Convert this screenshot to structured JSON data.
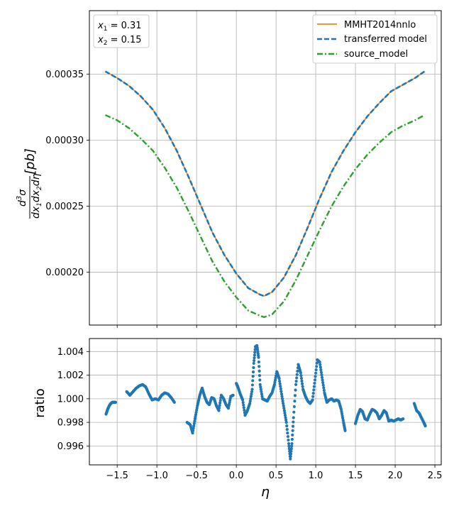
{
  "chart_data": [
    {
      "type": "line",
      "ylabel": "d³σ/dx₁dx₂dη [pb]",
      "ylabel_parts": {
        "numer": "d",
        "numer_sup": "3",
        "numer_sigma": "σ",
        "denom": "dx",
        "denom_sub1": "1",
        "denom_mid": "dx",
        "denom_sub2": "2",
        "denom_end": "dη",
        "unit": "[pb]"
      },
      "xlim": [
        -1.85,
        2.58
      ],
      "ylim": [
        0.00016,
        0.000398
      ],
      "grid": true,
      "legend_position": "top-right",
      "annotation": {
        "x1_var": "x",
        "x1_sub": "1",
        "x1_text": " = 0.31",
        "x2_var": "x",
        "x2_sub": "2",
        "x2_text": " = 0.15"
      },
      "ytick_values": [
        0.0002,
        0.00025,
        0.0003,
        0.00035
      ],
      "ytick_labels": [
        "0.00020",
        "0.00025",
        "0.00030",
        "0.00035"
      ],
      "series": [
        {
          "name": "MMHT2014nnlo",
          "color": "#ff7f0e",
          "style": "solid",
          "x": [
            -1.65,
            -1.5,
            -1.35,
            -1.2,
            -1.05,
            -0.9,
            -0.75,
            -0.6,
            -0.45,
            -0.3,
            -0.15,
            0.0,
            0.15,
            0.3,
            0.35,
            0.45,
            0.6,
            0.75,
            0.9,
            1.05,
            1.2,
            1.35,
            1.5,
            1.65,
            1.8,
            1.95,
            2.1,
            2.25,
            2.37
          ],
          "y": [
            0.000352,
            0.000347,
            0.000341,
            0.000333,
            0.000323,
            0.000309,
            0.000292,
            0.000272,
            0.000251,
            0.00023,
            0.000213,
            0.000199,
            0.000188,
            0.000183,
            0.000182,
            0.000185,
            0.000196,
            0.000213,
            0.000234,
            0.000256,
            0.000276,
            0.000292,
            0.000306,
            0.000318,
            0.000328,
            0.000337,
            0.000342,
            0.000347,
            0.000352
          ]
        },
        {
          "name": "transferred model",
          "color": "#1f77b4",
          "style": "dashed",
          "x": [
            -1.65,
            -1.5,
            -1.35,
            -1.2,
            -1.05,
            -0.9,
            -0.75,
            -0.6,
            -0.45,
            -0.3,
            -0.15,
            0.0,
            0.15,
            0.3,
            0.35,
            0.45,
            0.6,
            0.75,
            0.9,
            1.05,
            1.2,
            1.35,
            1.5,
            1.65,
            1.8,
            1.95,
            2.1,
            2.25,
            2.37
          ],
          "y": [
            0.000352,
            0.000347,
            0.000341,
            0.000333,
            0.000323,
            0.000309,
            0.000292,
            0.000272,
            0.000251,
            0.00023,
            0.000213,
            0.000199,
            0.000188,
            0.000183,
            0.000182,
            0.000185,
            0.000196,
            0.000213,
            0.000234,
            0.000256,
            0.000276,
            0.000292,
            0.000306,
            0.000318,
            0.000328,
            0.000337,
            0.000342,
            0.000347,
            0.000352
          ]
        },
        {
          "name": "source_model",
          "color": "#2ca02c",
          "style": "dashdot",
          "x": [
            -1.65,
            -1.5,
            -1.35,
            -1.2,
            -1.05,
            -0.9,
            -0.75,
            -0.6,
            -0.45,
            -0.3,
            -0.15,
            0.0,
            0.15,
            0.3,
            0.35,
            0.45,
            0.6,
            0.75,
            0.9,
            1.05,
            1.2,
            1.35,
            1.5,
            1.65,
            1.8,
            1.95,
            2.1,
            2.25,
            2.37
          ],
          "y": [
            0.000319,
            0.000315,
            0.000309,
            0.000301,
            0.000292,
            0.000279,
            0.000264,
            0.000246,
            0.000227,
            0.000208,
            0.000193,
            0.000181,
            0.000171,
            0.000167,
            0.000166,
            0.000168,
            0.000178,
            0.000194,
            0.000213,
            0.000232,
            0.00025,
            0.000265,
            0.000278,
            0.000289,
            0.000298,
            0.000306,
            0.000311,
            0.000315,
            0.000319
          ]
        }
      ]
    },
    {
      "type": "scatter",
      "xlabel": "η",
      "ylabel": "ratio",
      "xlim": [
        -1.85,
        2.58
      ],
      "ylim": [
        0.9944,
        1.0051
      ],
      "grid": true,
      "xtick_values": [
        -1.5,
        -1.0,
        -0.5,
        0.0,
        0.5,
        1.0,
        1.5,
        2.0,
        2.5
      ],
      "xtick_labels": [
        "−1.5",
        "−1.0",
        "−0.5",
        "0.0",
        "0.5",
        "1.0",
        "1.5",
        "2.0",
        "2.5"
      ],
      "ytick_values": [
        0.996,
        0.998,
        1.0,
        1.002,
        1.004
      ],
      "ytick_labels": [
        "0.996",
        "0.998",
        "1.000",
        "1.002",
        "1.004"
      ],
      "series": [
        {
          "color": "#1f77b4",
          "segments": [
            {
              "x": [
                -1.64,
                -1.62,
                -1.6,
                -1.58,
                -1.56,
                -1.54,
                -1.52
              ],
              "y": [
                0.9987,
                0.9991,
                0.9994,
                0.9996,
                0.9997,
                0.9997,
                0.9997
              ]
            },
            {
              "x": [
                -1.38,
                -1.34,
                -1.3,
                -1.26,
                -1.22,
                -1.18,
                -1.14,
                -1.1,
                -1.06,
                -1.02,
                -0.98,
                -0.94,
                -0.9,
                -0.86,
                -0.82,
                -0.78
              ],
              "y": [
                1.0006,
                1.0003,
                1.0006,
                1.0009,
                1.0011,
                1.0012,
                1.001,
                1.0004,
                0.9999,
                1.0,
                0.9999,
                1.0003,
                1.0005,
                1.0004,
                1.0001,
                0.9997
              ]
            },
            {
              "x": [
                -0.62,
                -0.58,
                -0.55,
                -0.52,
                -0.49,
                -0.46,
                -0.43,
                -0.4,
                -0.37,
                -0.34,
                -0.31,
                -0.28,
                -0.25,
                -0.22,
                -0.19,
                -0.16,
                -0.13,
                -0.1,
                -0.07,
                -0.04
              ],
              "y": [
                0.998,
                0.9978,
                0.9971,
                0.9983,
                0.9994,
                1.0003,
                1.0009,
                1.0002,
                0.9997,
                0.9995,
                1.0001,
                1.0,
                0.9994,
                0.999,
                1.0003,
                1.0,
                0.9995,
                0.9992,
                1.0002,
                1.0003
              ]
            },
            {
              "x": [
                0.0,
                0.02,
                0.05,
                0.08,
                0.11,
                0.14,
                0.17,
                0.2,
                0.22,
                0.24,
                0.26,
                0.28,
                0.3,
                0.33,
                0.36,
                0.39,
                0.42,
                0.45,
                0.48,
                0.51,
                0.54,
                0.57,
                0.6,
                0.63,
                0.66,
                0.68,
                0.7,
                0.72,
                0.75,
                0.78,
                0.81,
                0.84,
                0.87,
                0.9,
                0.93,
                0.96,
                0.99,
                1.02,
                1.05,
                1.08,
                1.11,
                1.14,
                1.17,
                1.2,
                1.23,
                1.26,
                1.29,
                1.32,
                1.35,
                1.37
              ],
              "y": [
                1.0013,
                1.001,
                1.0004,
                0.9999,
                0.9986,
                0.999,
                0.9996,
                1.0008,
                1.003,
                1.0044,
                1.0045,
                1.0035,
                1.0012,
                1.0,
                0.9999,
                0.9998,
                1.0002,
                1.0005,
                1.0012,
                1.0023,
                1.0017,
                1.0004,
                0.9992,
                0.998,
                0.9962,
                0.9949,
                0.9962,
                0.9984,
                1.0012,
                1.0029,
                1.0022,
                1.0008,
                1.0002,
                0.9998,
                0.9996,
                0.9999,
                1.0016,
                1.0033,
                1.0031,
                1.0018,
                1.0005,
                0.9997,
                0.9999,
                1.0,
                0.9998,
                0.9999,
                0.9998,
                0.9991,
                0.998,
                0.9973
              ]
            },
            {
              "x": [
                1.5,
                1.53,
                1.56,
                1.59,
                1.62,
                1.65,
                1.68,
                1.71,
                1.74,
                1.77,
                1.8,
                1.83,
                1.86,
                1.89,
                1.92,
                1.95,
                1.98,
                2.01,
                2.04,
                2.07,
                2.1
              ],
              "y": [
                0.9979,
                0.9986,
                0.9991,
                0.9989,
                0.9983,
                0.9982,
                0.9987,
                0.9991,
                0.999,
                0.9988,
                0.9983,
                0.9986,
                0.999,
                0.9988,
                0.9981,
                0.9982,
                0.9981,
                0.9982,
                0.9983,
                0.9982,
                0.9983
              ]
            },
            {
              "x": [
                2.24,
                2.27,
                2.3,
                2.33,
                2.36,
                2.38
              ],
              "y": [
                0.9996,
                0.999,
                0.9988,
                0.9984,
                0.998,
                0.9977
              ]
            }
          ]
        }
      ]
    }
  ]
}
